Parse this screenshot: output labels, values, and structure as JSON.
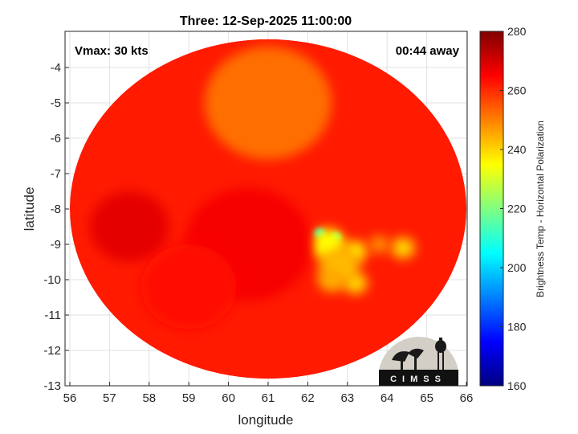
{
  "chart_data": {
    "type": "heatmap",
    "title": "Three: 12-Sep-2025 11:00:00",
    "xlabel": "longitude",
    "ylabel": "latitude",
    "xlim": [
      56,
      66
    ],
    "ylim": [
      -13,
      -3.1
    ],
    "x_ticks": [
      56,
      57,
      58,
      59,
      60,
      61,
      62,
      63,
      64,
      65,
      66
    ],
    "y_ticks": [
      -13,
      -12,
      -11,
      -10,
      -9,
      -8,
      -7,
      -6,
      -5,
      -4
    ],
    "grid": true,
    "swath": {
      "center_lon": 61.0,
      "center_lat": -8.0,
      "radius_lon": 5.0,
      "radius_lat": 4.8
    },
    "background_temp_k": 262,
    "features": [
      {
        "lon": 62.3,
        "lat": -8.7,
        "temp_k": 205,
        "radius": 0.15
      },
      {
        "lon": 62.7,
        "lat": -8.8,
        "temp_k": 212,
        "radius": 0.14
      },
      {
        "lon": 62.5,
        "lat": -9.0,
        "temp_k": 235,
        "radius": 0.45
      },
      {
        "lon": 63.2,
        "lat": -9.2,
        "temp_k": 238,
        "radius": 0.3
      },
      {
        "lon": 62.8,
        "lat": -9.6,
        "temp_k": 243,
        "radius": 0.5
      },
      {
        "lon": 63.2,
        "lat": -10.1,
        "temp_k": 240,
        "radius": 0.3
      },
      {
        "lon": 62.6,
        "lat": -10.0,
        "temp_k": 245,
        "radius": 0.35
      },
      {
        "lon": 64.4,
        "lat": -9.1,
        "temp_k": 240,
        "radius": 0.3
      },
      {
        "lon": 63.8,
        "lat": -9.0,
        "temp_k": 248,
        "radius": 0.25
      },
      {
        "lon": 61.0,
        "lat": -5.0,
        "temp_k": 252,
        "radius": 1.6
      },
      {
        "lon": 60.5,
        "lat": -9.0,
        "temp_k": 266,
        "radius": 1.6
      },
      {
        "lon": 57.5,
        "lat": -8.5,
        "temp_k": 268,
        "radius": 1.0
      },
      {
        "lon": 59.0,
        "lat": -10.2,
        "temp_k": 264,
        "radius": 1.2
      }
    ],
    "colorbar": {
      "label": "Brightness Temp - Horizontal Polarization",
      "min": 160,
      "max": 280,
      "ticks": [
        160,
        180,
        200,
        220,
        240,
        260,
        280
      ],
      "colormap": "jet"
    }
  },
  "annotations": {
    "vmax": "Vmax: 30 kts",
    "time_away": "00:44 away",
    "logo_text": "CIMSS"
  },
  "colors": {
    "background": "#ffffff",
    "axis": "#262626",
    "grid": "#e2e2e2"
  }
}
